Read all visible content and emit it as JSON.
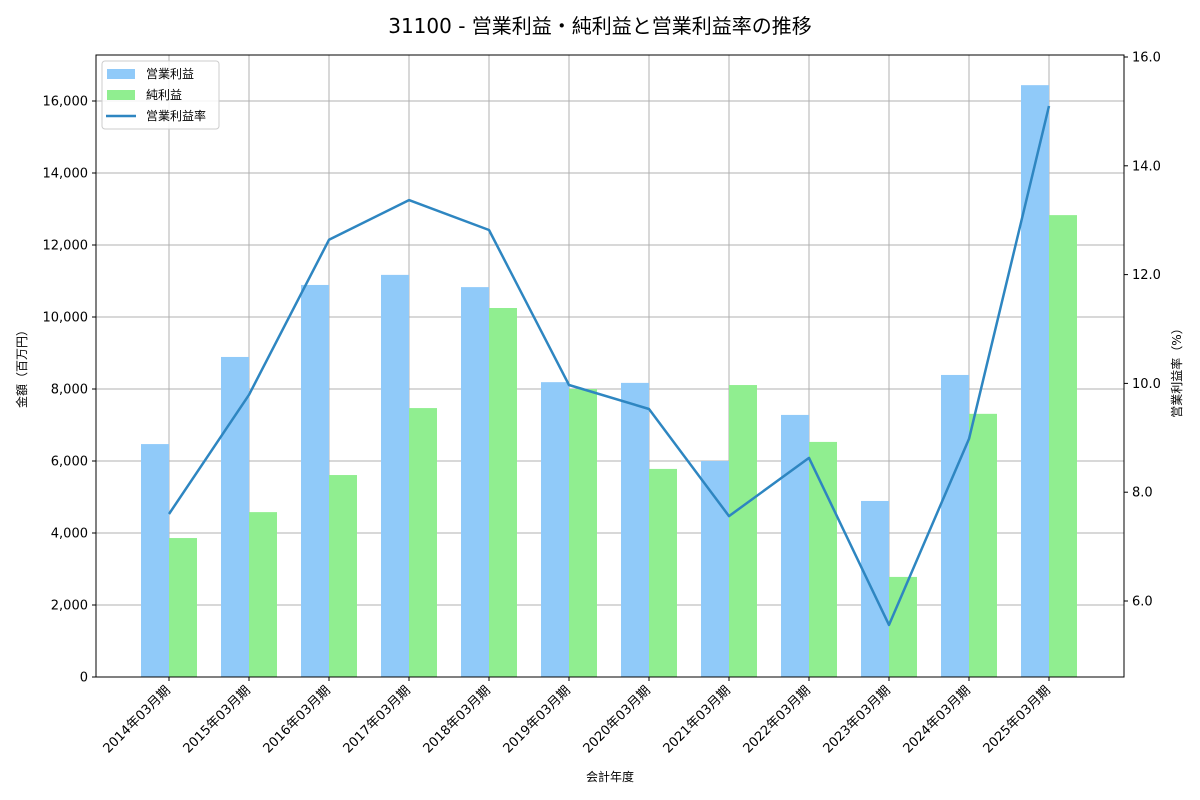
{
  "chart_data": {
    "type": "bar",
    "title": "31100 - 営業利益・純利益と営業利益率の推移",
    "xlabel": "会計年度",
    "ylabel": "金額（百万円）",
    "y2label": "営業利益率（%）",
    "ylim": [
      0,
      17200
    ],
    "y2lim": [
      4.6,
      16.0
    ],
    "yticks": [
      "0",
      "2,000",
      "4,000",
      "6,000",
      "8,000",
      "10,000",
      "12,000",
      "14,000",
      "16,000"
    ],
    "y2ticks": [
      "6.0",
      "8.0",
      "10.0",
      "12.0",
      "14.0",
      "16.0"
    ],
    "grid": true,
    "legend_position": "upper left",
    "categories": [
      "2014年03月期",
      "2015年03月期",
      "2016年03月期",
      "2017年03月期",
      "2018年03月期",
      "2019年03月期",
      "2020年03月期",
      "2021年03月期",
      "2022年03月期",
      "2023年03月期",
      "2024年03月期",
      "2025年03月期"
    ],
    "series": [
      {
        "name": "営業利益",
        "type": "bar",
        "axis": "left",
        "color": "#90caf9",
        "values": [
          6470,
          8890,
          10890,
          11170,
          10830,
          8190,
          8170,
          6000,
          7280,
          4890,
          8390,
          16440
        ]
      },
      {
        "name": "純利益",
        "type": "bar",
        "axis": "left",
        "color": "#90ee90",
        "values": [
          3860,
          4580,
          5610,
          7470,
          10250,
          8000,
          5780,
          8110,
          6530,
          2780,
          7310,
          12830
        ]
      },
      {
        "name": "営業利益率",
        "type": "line",
        "axis": "right",
        "color": "#2e86c1",
        "values": [
          7.6,
          9.79,
          12.64,
          13.37,
          12.82,
          9.97,
          9.53,
          7.56,
          8.63,
          5.56,
          8.98,
          15.1
        ]
      }
    ]
  }
}
